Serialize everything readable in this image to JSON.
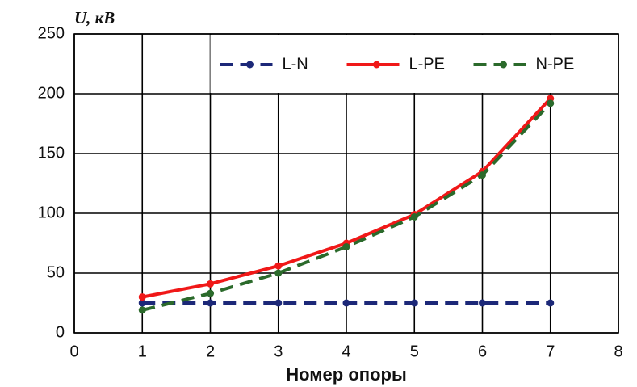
{
  "chart_data": {
    "type": "line",
    "y_label": "U, кВ",
    "x_label": "Номер опоры",
    "x": [
      1,
      2,
      3,
      4,
      5,
      6,
      7
    ],
    "xlim": [
      0,
      8
    ],
    "xticks": [
      0,
      1,
      2,
      3,
      4,
      5,
      6,
      7,
      8
    ],
    "ylim": [
      0,
      250
    ],
    "yticks": [
      0,
      50,
      100,
      150,
      200,
      250
    ],
    "grid": true,
    "legend": "upper right",
    "series": [
      {
        "name": "L-N",
        "color": "#1c2878",
        "line_style": "dashed",
        "values": [
          25,
          25,
          25,
          25,
          25,
          25,
          25
        ]
      },
      {
        "name": "L-PE",
        "color": "#f01818",
        "line_style": "solid",
        "values": [
          30,
          41,
          56,
          75,
          99,
          135,
          196
        ]
      },
      {
        "name": "N-PE",
        "color": "#2b6a2b",
        "line_style": "dashed",
        "values": [
          19,
          33,
          50,
          72,
          97,
          132,
          192
        ]
      }
    ]
  }
}
